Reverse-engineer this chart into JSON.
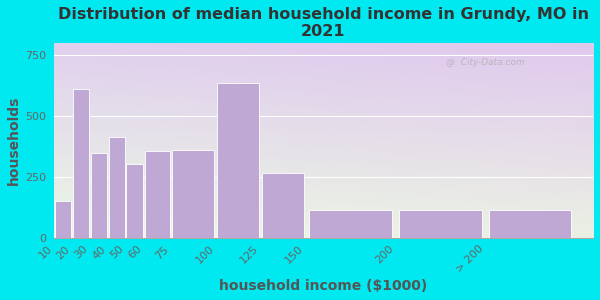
{
  "title": "Distribution of median household income in Grundy, MO in\n2021",
  "xlabel": "household income ($1000)",
  "ylabel": "households",
  "bar_lefts": [
    10,
    20,
    30,
    40,
    50,
    60,
    75,
    100,
    125,
    150,
    200,
    250
  ],
  "bar_widths": [
    10,
    10,
    10,
    10,
    10,
    15,
    25,
    25,
    25,
    50,
    50,
    50
  ],
  "bar_values": [
    150,
    610,
    350,
    415,
    305,
    355,
    360,
    635,
    265,
    115,
    115,
    115
  ],
  "bar_color": "#c0a8d4",
  "bar_edgecolor": "#ffffff",
  "xlim": [
    10,
    310
  ],
  "xtick_positions": [
    10,
    20,
    30,
    40,
    50,
    60,
    75,
    100,
    125,
    150,
    200,
    250
  ],
  "xtick_labels": [
    "10",
    "20",
    "30",
    "40",
    "50",
    "60",
    "75",
    "100",
    "125",
    "150",
    "200",
    "> 200"
  ],
  "ylim": [
    0,
    800
  ],
  "yticks": [
    0,
    250,
    500,
    750
  ],
  "background_outer": "#00e8f0",
  "title_fontsize": 11.5,
  "axis_label_fontsize": 10,
  "tick_fontsize": 8,
  "watermark": "@  City-Data.com"
}
